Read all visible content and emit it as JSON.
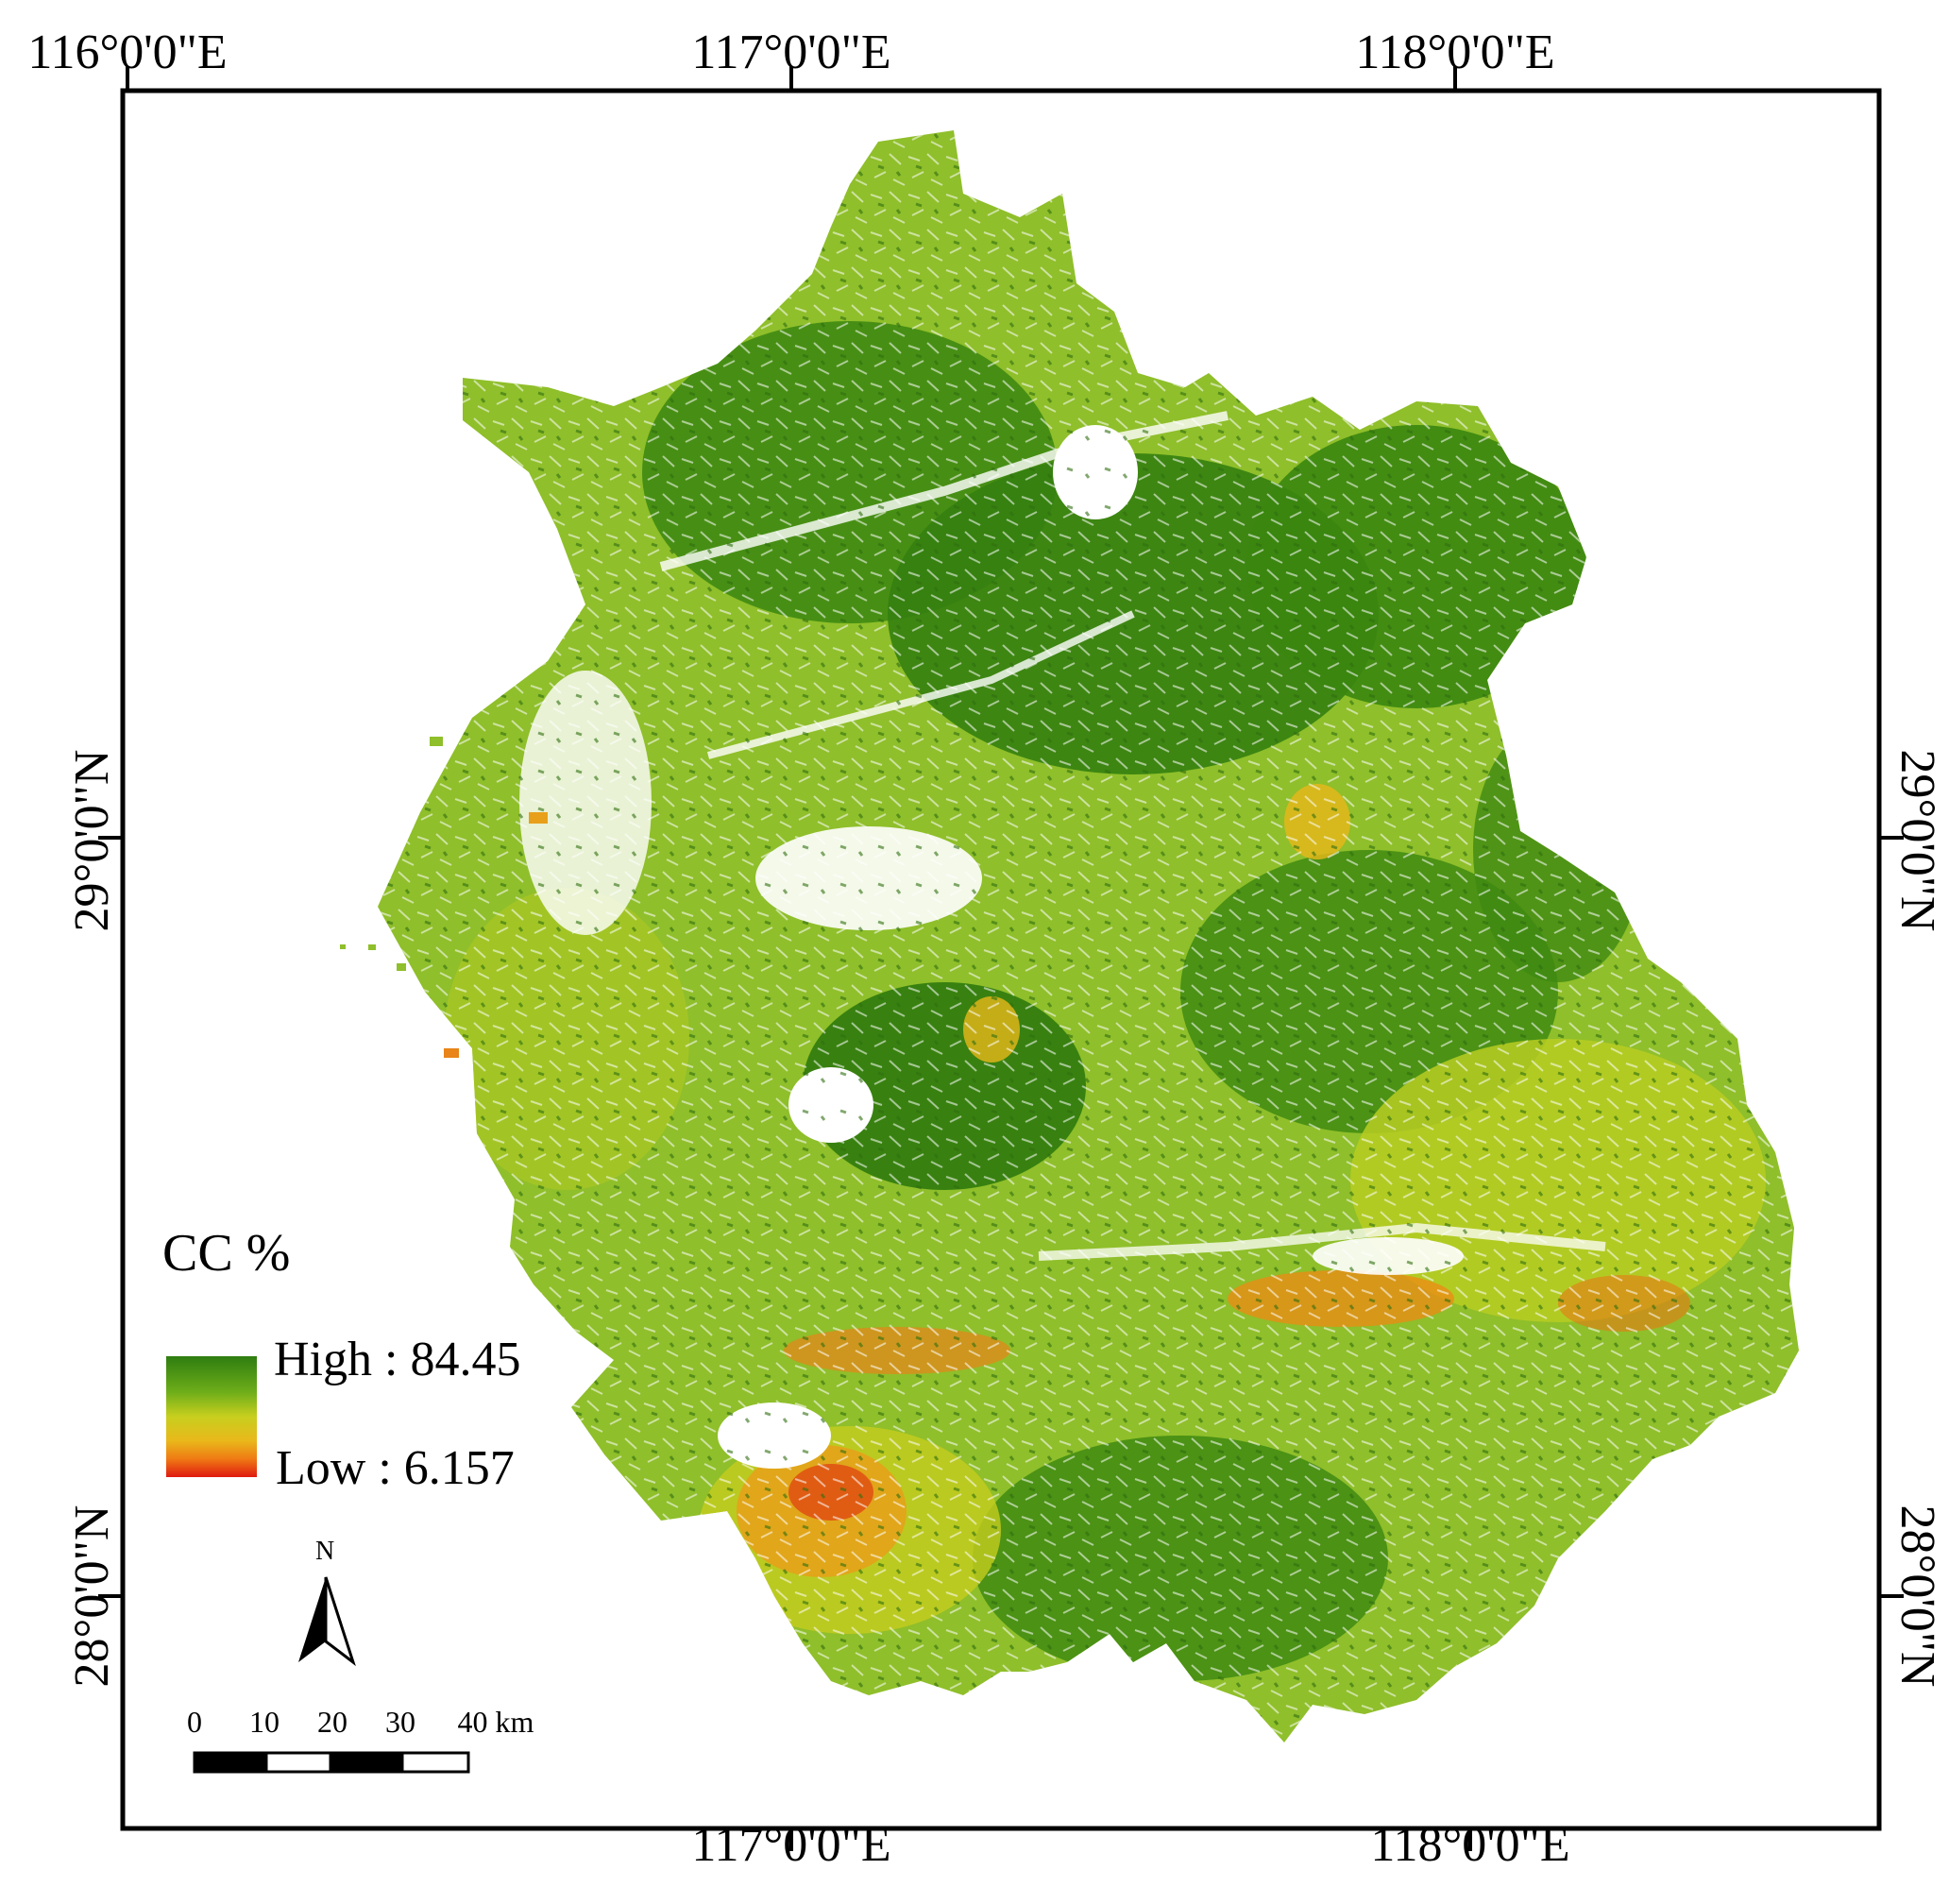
{
  "axes": {
    "top_longitude_labels": [
      "116°0'0\"E",
      "117°0'0\"E",
      "118°0'0\"E"
    ],
    "bottom_longitude_labels": [
      "117°0'0\"E",
      "118°0'0\"E"
    ],
    "left_latitude_labels": [
      "29°0'0\"N",
      "28°0'0\"N"
    ],
    "right_latitude_labels": [
      "29°0'0\"N",
      "28°0'0\"N"
    ]
  },
  "legend": {
    "title": "CC %",
    "high_label": "High : 84.45",
    "low_label": "Low : 6.157",
    "ramp_colors": [
      "#2e7d10",
      "#6fae1a",
      "#b8cc1e",
      "#e6c21a",
      "#ef7a14",
      "#e01a10"
    ]
  },
  "north_arrow": {
    "label": "N"
  },
  "scale_bar": {
    "ticks": [
      "0",
      "10",
      "20",
      "30",
      "40 km"
    ]
  },
  "colors": {
    "frame": "#000000",
    "high_cover": "#2e7d10",
    "mid_cover": "#8fbf2a",
    "low_cover": "#e01a10"
  }
}
